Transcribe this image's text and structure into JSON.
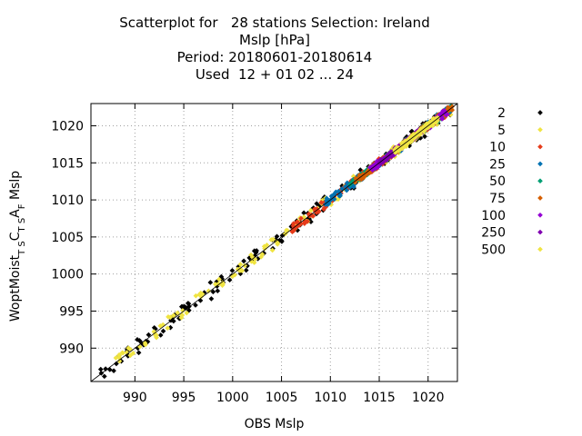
{
  "chart_data": {
    "type": "scatter",
    "title_lines": [
      "Scatterplot for   28 stations Selection: Ireland",
      "Mslp [hPa]",
      "Period: 20180601-20180614",
      "Used  12 + 01 02 ... 24"
    ],
    "xlabel": "OBS Mslp",
    "ylabel": "WoptMoist_TS C_TS A_F  Mslp",
    "ylabel_parts": [
      {
        "t": "WoptMoist",
        "sub": false
      },
      {
        "t": "T S",
        "sub": true
      },
      {
        "t": "C",
        "sub": false
      },
      {
        "t": "T S",
        "sub": true
      },
      {
        "t": "A",
        "sub": false
      },
      {
        "t": "F",
        "sub": true
      },
      {
        "t": "  Mslp",
        "sub": false
      }
    ],
    "xlim": [
      985.5,
      1023
    ],
    "ylim": [
      985.5,
      1023
    ],
    "xticks": [
      990,
      995,
      1000,
      1005,
      1010,
      1015,
      1020
    ],
    "yticks": [
      990,
      995,
      1000,
      1005,
      1010,
      1015,
      1020
    ],
    "grid": true,
    "legend_position": "right",
    "series": [
      {
        "name": "2",
        "color": "#000000",
        "range": [
          986.5,
          1022.5
        ],
        "spread": 0.9,
        "points": [
          [
            987.0,
            987.2
          ],
          [
            988.1,
            987.9
          ],
          [
            989.2,
            989.6
          ],
          [
            990.3,
            990.0
          ],
          [
            991.4,
            991.8
          ],
          [
            992.1,
            992.6
          ],
          [
            992.9,
            992.3
          ],
          [
            993.8,
            994.2
          ],
          [
            994.6,
            994.0
          ],
          [
            995.5,
            996.0
          ],
          [
            996.2,
            995.8
          ],
          [
            997.1,
            997.5
          ],
          [
            998.0,
            997.6
          ],
          [
            998.9,
            999.3
          ],
          [
            999.7,
            999.2
          ],
          [
            1000.6,
            1001.0
          ],
          [
            1001.5,
            1001.1
          ],
          [
            1002.4,
            1002.9
          ],
          [
            1003.2,
            1002.8
          ],
          [
            1004.1,
            1004.6
          ],
          [
            1005.0,
            1004.5
          ],
          [
            1006.0,
            1006.4
          ],
          [
            1006.9,
            1006.6
          ],
          [
            1007.7,
            1008.2
          ],
          [
            1008.6,
            1009.5
          ],
          [
            1009.4,
            1010.4
          ],
          [
            1010.3,
            1010.0
          ],
          [
            1011.2,
            1011.9
          ],
          [
            1012.1,
            1011.6
          ],
          [
            1013.0,
            1013.4
          ],
          [
            1013.9,
            1014.5
          ],
          [
            1014.8,
            1014.4
          ],
          [
            1015.7,
            1016.2
          ],
          [
            1016.6,
            1016.2
          ],
          [
            1017.5,
            1017.9
          ],
          [
            1018.4,
            1018.0
          ],
          [
            1019.3,
            1019.8
          ],
          [
            1020.2,
            1019.9
          ],
          [
            1021.1,
            1021.5
          ],
          [
            1022.0,
            1021.7
          ]
        ]
      },
      {
        "name": "5",
        "color": "#f0e442",
        "range": [
          988,
          1022.5
        ],
        "spread": 0.7,
        "points": [
          [
            988.4,
            988.7
          ],
          [
            990.5,
            990.2
          ],
          [
            992.6,
            993.0
          ],
          [
            994.8,
            994.4
          ],
          [
            996.9,
            997.3
          ],
          [
            999.0,
            998.6
          ],
          [
            1000.8,
            1001.3
          ],
          [
            1002.3,
            1002.0
          ],
          [
            1003.5,
            1003.9
          ],
          [
            1004.6,
            1004.2
          ],
          [
            1005.5,
            1005.9
          ],
          [
            1006.4,
            1006.1
          ],
          [
            1007.3,
            1007.7
          ],
          [
            1008.2,
            1007.8
          ],
          [
            1009.1,
            1009.5
          ],
          [
            1010.0,
            1009.6
          ],
          [
            1011.5,
            1011.9
          ],
          [
            1013.0,
            1012.6
          ],
          [
            1014.5,
            1014.9
          ],
          [
            1016.0,
            1015.6
          ],
          [
            1017.5,
            1017.9
          ],
          [
            1019.0,
            1018.6
          ],
          [
            1020.5,
            1020.9
          ],
          [
            1022.0,
            1021.7
          ]
        ]
      },
      {
        "name": "10",
        "color": "#e63b1a",
        "range": [
          1006,
          1022.5
        ],
        "spread": 0.5,
        "points": [
          [
            1006.2,
            1006.5
          ],
          [
            1007.0,
            1006.8
          ],
          [
            1007.8,
            1008.1
          ],
          [
            1008.6,
            1008.3
          ],
          [
            1009.4,
            1009.7
          ],
          [
            1010.2,
            1009.9
          ],
          [
            1011.0,
            1011.3
          ],
          [
            1011.8,
            1011.5
          ],
          [
            1012.6,
            1012.9
          ],
          [
            1013.4,
            1013.1
          ],
          [
            1014.2,
            1014.5
          ],
          [
            1015.0,
            1014.7
          ],
          [
            1015.8,
            1016.1
          ],
          [
            1016.6,
            1016.3
          ],
          [
            1017.4,
            1017.7
          ],
          [
            1018.2,
            1017.9
          ],
          [
            1019.0,
            1019.3
          ],
          [
            1019.8,
            1019.5
          ],
          [
            1020.6,
            1020.9
          ],
          [
            1021.4,
            1021.1
          ],
          [
            1022.2,
            1022.4
          ]
        ]
      },
      {
        "name": "25",
        "color": "#0072b2",
        "range": [
          1009.5,
          1022.5
        ],
        "spread": 0.5,
        "points": [
          [
            1009.6,
            1009.9
          ],
          [
            1010.4,
            1010.1
          ],
          [
            1011.2,
            1011.5
          ],
          [
            1012.0,
            1011.7
          ],
          [
            1012.8,
            1013.1
          ],
          [
            1013.6,
            1013.3
          ],
          [
            1014.4,
            1014.7
          ],
          [
            1015.2,
            1014.9
          ],
          [
            1016.0,
            1016.3
          ],
          [
            1016.8,
            1016.5
          ],
          [
            1017.6,
            1017.9
          ],
          [
            1018.4,
            1018.1
          ],
          [
            1019.2,
            1019.5
          ],
          [
            1020.0,
            1019.7
          ],
          [
            1020.8,
            1021.1
          ],
          [
            1021.6,
            1021.3
          ],
          [
            1022.3,
            1022.5
          ]
        ]
      },
      {
        "name": "50",
        "color": "#009e73",
        "range": [
          1012,
          1022.5
        ],
        "spread": 0.4,
        "points": [
          [
            1012.2,
            1012.4
          ],
          [
            1013.0,
            1012.8
          ],
          [
            1013.8,
            1014.0
          ],
          [
            1014.6,
            1014.4
          ],
          [
            1015.4,
            1015.6
          ],
          [
            1016.2,
            1016.0
          ],
          [
            1017.0,
            1017.2
          ],
          [
            1017.8,
            1017.6
          ],
          [
            1018.6,
            1018.8
          ],
          [
            1019.4,
            1019.2
          ],
          [
            1020.2,
            1020.4
          ],
          [
            1021.0,
            1020.8
          ],
          [
            1021.8,
            1022.0
          ]
        ]
      },
      {
        "name": "75",
        "color": "#d55e00",
        "range": [
          1012.5,
          1022.5
        ],
        "spread": 0.4,
        "points": [
          [
            1012.6,
            1012.9
          ],
          [
            1013.5,
            1013.3
          ],
          [
            1014.4,
            1014.7
          ],
          [
            1015.3,
            1015.1
          ],
          [
            1016.2,
            1016.5
          ],
          [
            1017.1,
            1016.9
          ],
          [
            1018.0,
            1018.3
          ],
          [
            1018.9,
            1018.7
          ],
          [
            1019.8,
            1020.1
          ],
          [
            1020.7,
            1020.5
          ],
          [
            1021.6,
            1021.9
          ],
          [
            1022.4,
            1022.2
          ]
        ]
      },
      {
        "name": "100",
        "color": "#9400d3",
        "range": [
          1014,
          1022
        ],
        "spread": 0.4,
        "points": [
          [
            1014.2,
            1014.4
          ],
          [
            1015.0,
            1014.8
          ],
          [
            1015.8,
            1016.0
          ],
          [
            1016.6,
            1016.4
          ],
          [
            1017.4,
            1017.6
          ],
          [
            1018.2,
            1018.0
          ],
          [
            1019.0,
            1019.2
          ],
          [
            1019.8,
            1019.6
          ],
          [
            1020.6,
            1020.8
          ],
          [
            1021.4,
            1021.2
          ]
        ]
      },
      {
        "name": "250",
        "color": "#8000b0",
        "range": [
          1015,
          1021
        ],
        "spread": 0.35,
        "points": [
          [
            1015.2,
            1015.4
          ],
          [
            1016.0,
            1015.8
          ],
          [
            1016.8,
            1017.0
          ],
          [
            1017.6,
            1017.4
          ],
          [
            1018.4,
            1018.6
          ],
          [
            1019.2,
            1019.0
          ],
          [
            1020.0,
            1020.2
          ],
          [
            1020.8,
            1020.6
          ]
        ]
      },
      {
        "name": "500",
        "color": "#f0e442",
        "range": [
          1016.5,
          1021
        ],
        "spread": 0.35,
        "points": [
          [
            1016.6,
            1016.8
          ],
          [
            1017.3,
            1017.1
          ],
          [
            1018.0,
            1018.2
          ],
          [
            1018.7,
            1018.5
          ],
          [
            1019.4,
            1019.6
          ],
          [
            1020.1,
            1019.9
          ],
          [
            1020.8,
            1021.0
          ]
        ]
      }
    ]
  }
}
